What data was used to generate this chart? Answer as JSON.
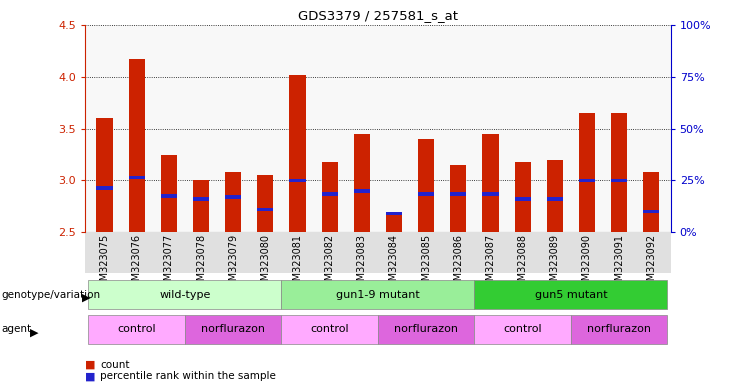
{
  "title": "GDS3379 / 257581_s_at",
  "samples": [
    "GSM323075",
    "GSM323076",
    "GSM323077",
    "GSM323078",
    "GSM323079",
    "GSM323080",
    "GSM323081",
    "GSM323082",
    "GSM323083",
    "GSM323084",
    "GSM323085",
    "GSM323086",
    "GSM323087",
    "GSM323088",
    "GSM323089",
    "GSM323090",
    "GSM323091",
    "GSM323092"
  ],
  "counts": [
    3.6,
    4.17,
    3.25,
    3.0,
    3.08,
    3.05,
    4.02,
    3.18,
    3.45,
    2.68,
    3.4,
    3.15,
    3.45,
    3.18,
    3.2,
    3.65,
    3.65,
    3.08
  ],
  "percentile_ranks": [
    2.93,
    3.03,
    2.85,
    2.82,
    2.84,
    2.72,
    3.0,
    2.87,
    2.9,
    2.68,
    2.87,
    2.87,
    2.87,
    2.82,
    2.82,
    3.0,
    3.0,
    2.7
  ],
  "ylim_left": [
    2.5,
    4.5
  ],
  "ylim_right": [
    0,
    100
  ],
  "yticks_left": [
    2.5,
    3.0,
    3.5,
    4.0,
    4.5
  ],
  "yticks_right": [
    0,
    25,
    50,
    75,
    100
  ],
  "bar_color": "#CC2200",
  "percentile_color": "#2222CC",
  "bar_width": 0.5,
  "genotype_groups": [
    {
      "label": "wild-type",
      "start": 0,
      "end": 6,
      "color": "#ccffcc"
    },
    {
      "label": "gun1-9 mutant",
      "start": 6,
      "end": 12,
      "color": "#99ee99"
    },
    {
      "label": "gun5 mutant",
      "start": 12,
      "end": 18,
      "color": "#33cc33"
    }
  ],
  "agent_groups": [
    {
      "label": "control",
      "start": 0,
      "end": 3,
      "color": "#ffaaff"
    },
    {
      "label": "norflurazon",
      "start": 3,
      "end": 6,
      "color": "#dd66dd"
    },
    {
      "label": "control",
      "start": 6,
      "end": 9,
      "color": "#ffaaff"
    },
    {
      "label": "norflurazon",
      "start": 9,
      "end": 12,
      "color": "#dd66dd"
    },
    {
      "label": "control",
      "start": 12,
      "end": 15,
      "color": "#ffaaff"
    },
    {
      "label": "norflurazon",
      "start": 15,
      "end": 18,
      "color": "#dd66dd"
    }
  ],
  "legend_count_color": "#CC2200",
  "legend_percentile_color": "#2222CC",
  "right_axis_color": "#0000CC",
  "left_axis_color": "#CC2200",
  "background_color": "#f0f0f0"
}
